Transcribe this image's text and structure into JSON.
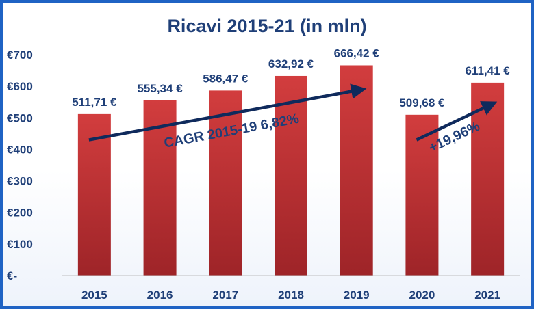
{
  "chart_data": {
    "type": "bar",
    "title": "Ricavi 2015-21 (in mln)",
    "categories": [
      "2015",
      "2016",
      "2017",
      "2018",
      "2019",
      "2020",
      "2021"
    ],
    "values": [
      511.71,
      555.34,
      586.47,
      632.92,
      666.42,
      509.68,
      611.41
    ],
    "data_labels": [
      "511,71 €",
      "555,34 €",
      "586,47 €",
      "632,92 €",
      "666,42 €",
      "509,68 €",
      "611,41 €"
    ],
    "y_ticks": [
      "€-",
      "€100",
      "€200",
      "€300",
      "€400",
      "€500",
      "€600",
      "€700"
    ],
    "ylim": [
      0,
      700
    ],
    "grid": false,
    "legend": "none",
    "bar_color": "#c0373a",
    "text_color": "#1f3f78",
    "annotations": [
      {
        "text": "CAGR 2015-19 6,82%",
        "from_category": "2015",
        "to_category": "2019",
        "from_value": 430,
        "to_value": 590
      },
      {
        "text": "+19,96%",
        "from_category": "2020",
        "to_category": "2021",
        "from_value": 430,
        "to_value": 545
      }
    ]
  }
}
